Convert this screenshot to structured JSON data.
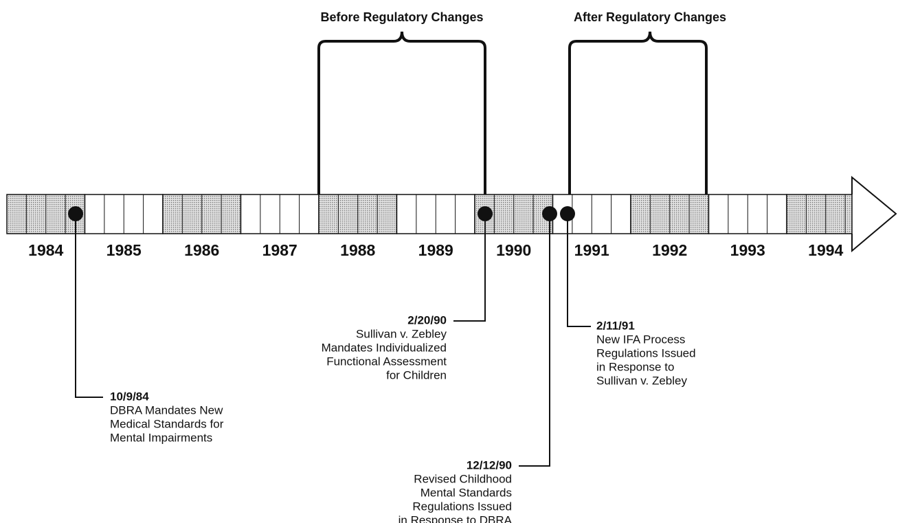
{
  "periods": [
    {
      "label": "Before Regulatory Changes"
    },
    {
      "label": "After Regulatory Changes"
    }
  ],
  "years": [
    "1984",
    "1985",
    "1986",
    "1987",
    "1988",
    "1989",
    "1990",
    "1991",
    "1992",
    "1993",
    "1994"
  ],
  "events": [
    {
      "date": "10/9/84",
      "lines": [
        "DBRA Mandates New",
        "Medical Standards for",
        "Mental Impairments"
      ]
    },
    {
      "date": "2/20/90",
      "lines": [
        "Sullivan v. Zebley",
        "Mandates Individualized",
        "Functional Assessment",
        "for Children"
      ]
    },
    {
      "date": "12/12/90",
      "lines": [
        "Revised Childhood",
        "Mental Standards",
        "Regulations Issued",
        "in Response to DBRA"
      ]
    },
    {
      "date": "2/11/91",
      "lines": [
        "New IFA Process",
        "Regulations Issued",
        "in Response to",
        "Sullivan v. Zebley"
      ]
    }
  ]
}
